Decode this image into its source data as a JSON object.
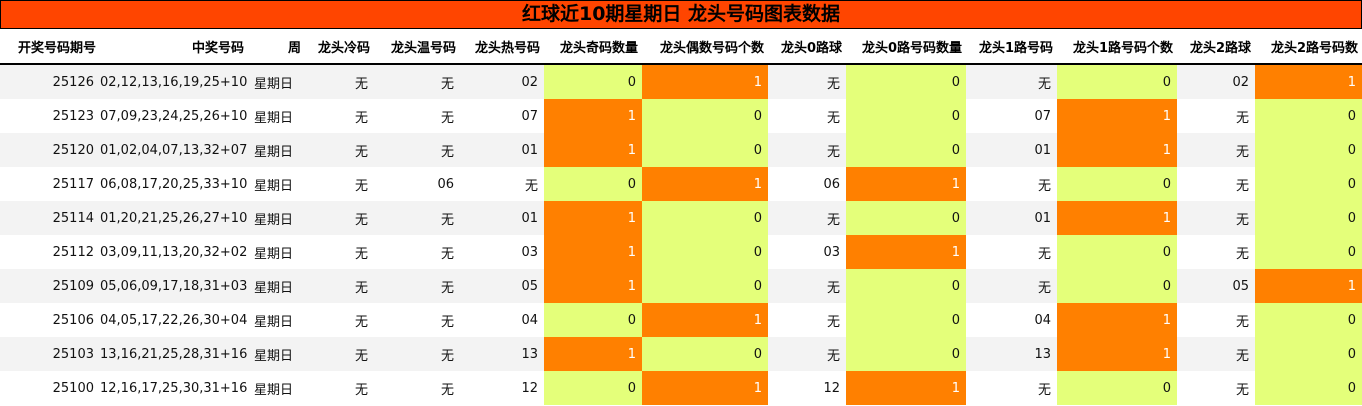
{
  "title": "红球近10期星期日 龙头号码图表数据",
  "headers": [
    "开奖号码期号",
    "中奖号码",
    "周",
    "龙头冷码",
    "龙头温号码",
    "龙头热号码",
    "龙头奇码数量",
    "龙头偶数号码个数",
    "龙头0路球",
    "龙头0路号码数量",
    "龙头1路号码",
    "龙头1路号码个数",
    "龙头2路球",
    "龙头2路号码数"
  ],
  "colors": {
    "title_bg": "#ff4500",
    "count_one": "#ff8000",
    "count_zero": "#e4ff7a"
  },
  "rows": [
    [
      "25126",
      "02,12,13,16,19,25+10",
      "星期日",
      "无",
      "无",
      "02",
      "0",
      "1",
      "无",
      "0",
      "无",
      "0",
      "02",
      "1"
    ],
    [
      "25123",
      "07,09,23,24,25,26+10",
      "星期日",
      "无",
      "无",
      "07",
      "1",
      "0",
      "无",
      "0",
      "07",
      "1",
      "无",
      "0"
    ],
    [
      "25120",
      "01,02,04,07,13,32+07",
      "星期日",
      "无",
      "无",
      "01",
      "1",
      "0",
      "无",
      "0",
      "01",
      "1",
      "无",
      "0"
    ],
    [
      "25117",
      "06,08,17,20,25,33+10",
      "星期日",
      "无",
      "06",
      "无",
      "0",
      "1",
      "06",
      "1",
      "无",
      "0",
      "无",
      "0"
    ],
    [
      "25114",
      "01,20,21,25,26,27+10",
      "星期日",
      "无",
      "无",
      "01",
      "1",
      "0",
      "无",
      "0",
      "01",
      "1",
      "无",
      "0"
    ],
    [
      "25112",
      "03,09,11,13,20,32+02",
      "星期日",
      "无",
      "无",
      "03",
      "1",
      "0",
      "03",
      "1",
      "无",
      "0",
      "无",
      "0"
    ],
    [
      "25109",
      "05,06,09,17,18,31+03",
      "星期日",
      "无",
      "无",
      "05",
      "1",
      "0",
      "无",
      "0",
      "无",
      "0",
      "05",
      "1"
    ],
    [
      "25106",
      "04,05,17,22,26,30+04",
      "星期日",
      "无",
      "无",
      "04",
      "0",
      "1",
      "无",
      "0",
      "04",
      "1",
      "无",
      "0"
    ],
    [
      "25103",
      "13,16,21,25,28,31+16",
      "星期日",
      "无",
      "无",
      "13",
      "1",
      "0",
      "无",
      "0",
      "13",
      "1",
      "无",
      "0"
    ],
    [
      "25100",
      "12,16,17,25,30,31+16",
      "星期日",
      "无",
      "无",
      "12",
      "0",
      "1",
      "12",
      "1",
      "无",
      "0",
      "无",
      "0"
    ]
  ]
}
